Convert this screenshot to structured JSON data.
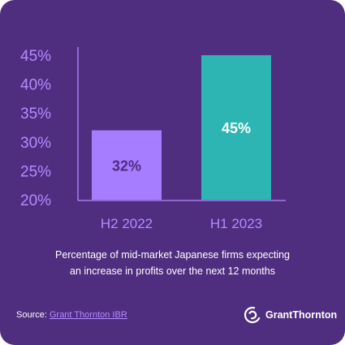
{
  "chart_data": {
    "type": "bar",
    "categories": [
      "H2 2022",
      "H1 2023"
    ],
    "values": [
      32,
      45
    ],
    "value_labels": [
      "32%",
      "45%"
    ],
    "ylim": [
      20,
      45
    ],
    "yticks": [
      20,
      25,
      30,
      35,
      40,
      45
    ],
    "ytick_labels": [
      "20%",
      "25%",
      "30%",
      "35%",
      "40%",
      "45%"
    ],
    "bar_colors": [
      "#a77dff",
      "#2cb5b2"
    ],
    "value_label_colors": [
      "#4f2d7f",
      "#ffffff"
    ],
    "axis_color": "#b48cff",
    "grid": false
  },
  "caption": {
    "line1": "Percentage of mid-market Japanese firms expecting",
    "line2": "an increase in profits over the next 12 months"
  },
  "source": {
    "prefix": "Source: ",
    "link_text": "Grant Thornton IBR"
  },
  "logo": {
    "text": "GrantThornton",
    "icon": "grant-thornton-logo-icon"
  },
  "colors": {
    "background": "#4f2d7f",
    "accent": "#b48cff"
  }
}
